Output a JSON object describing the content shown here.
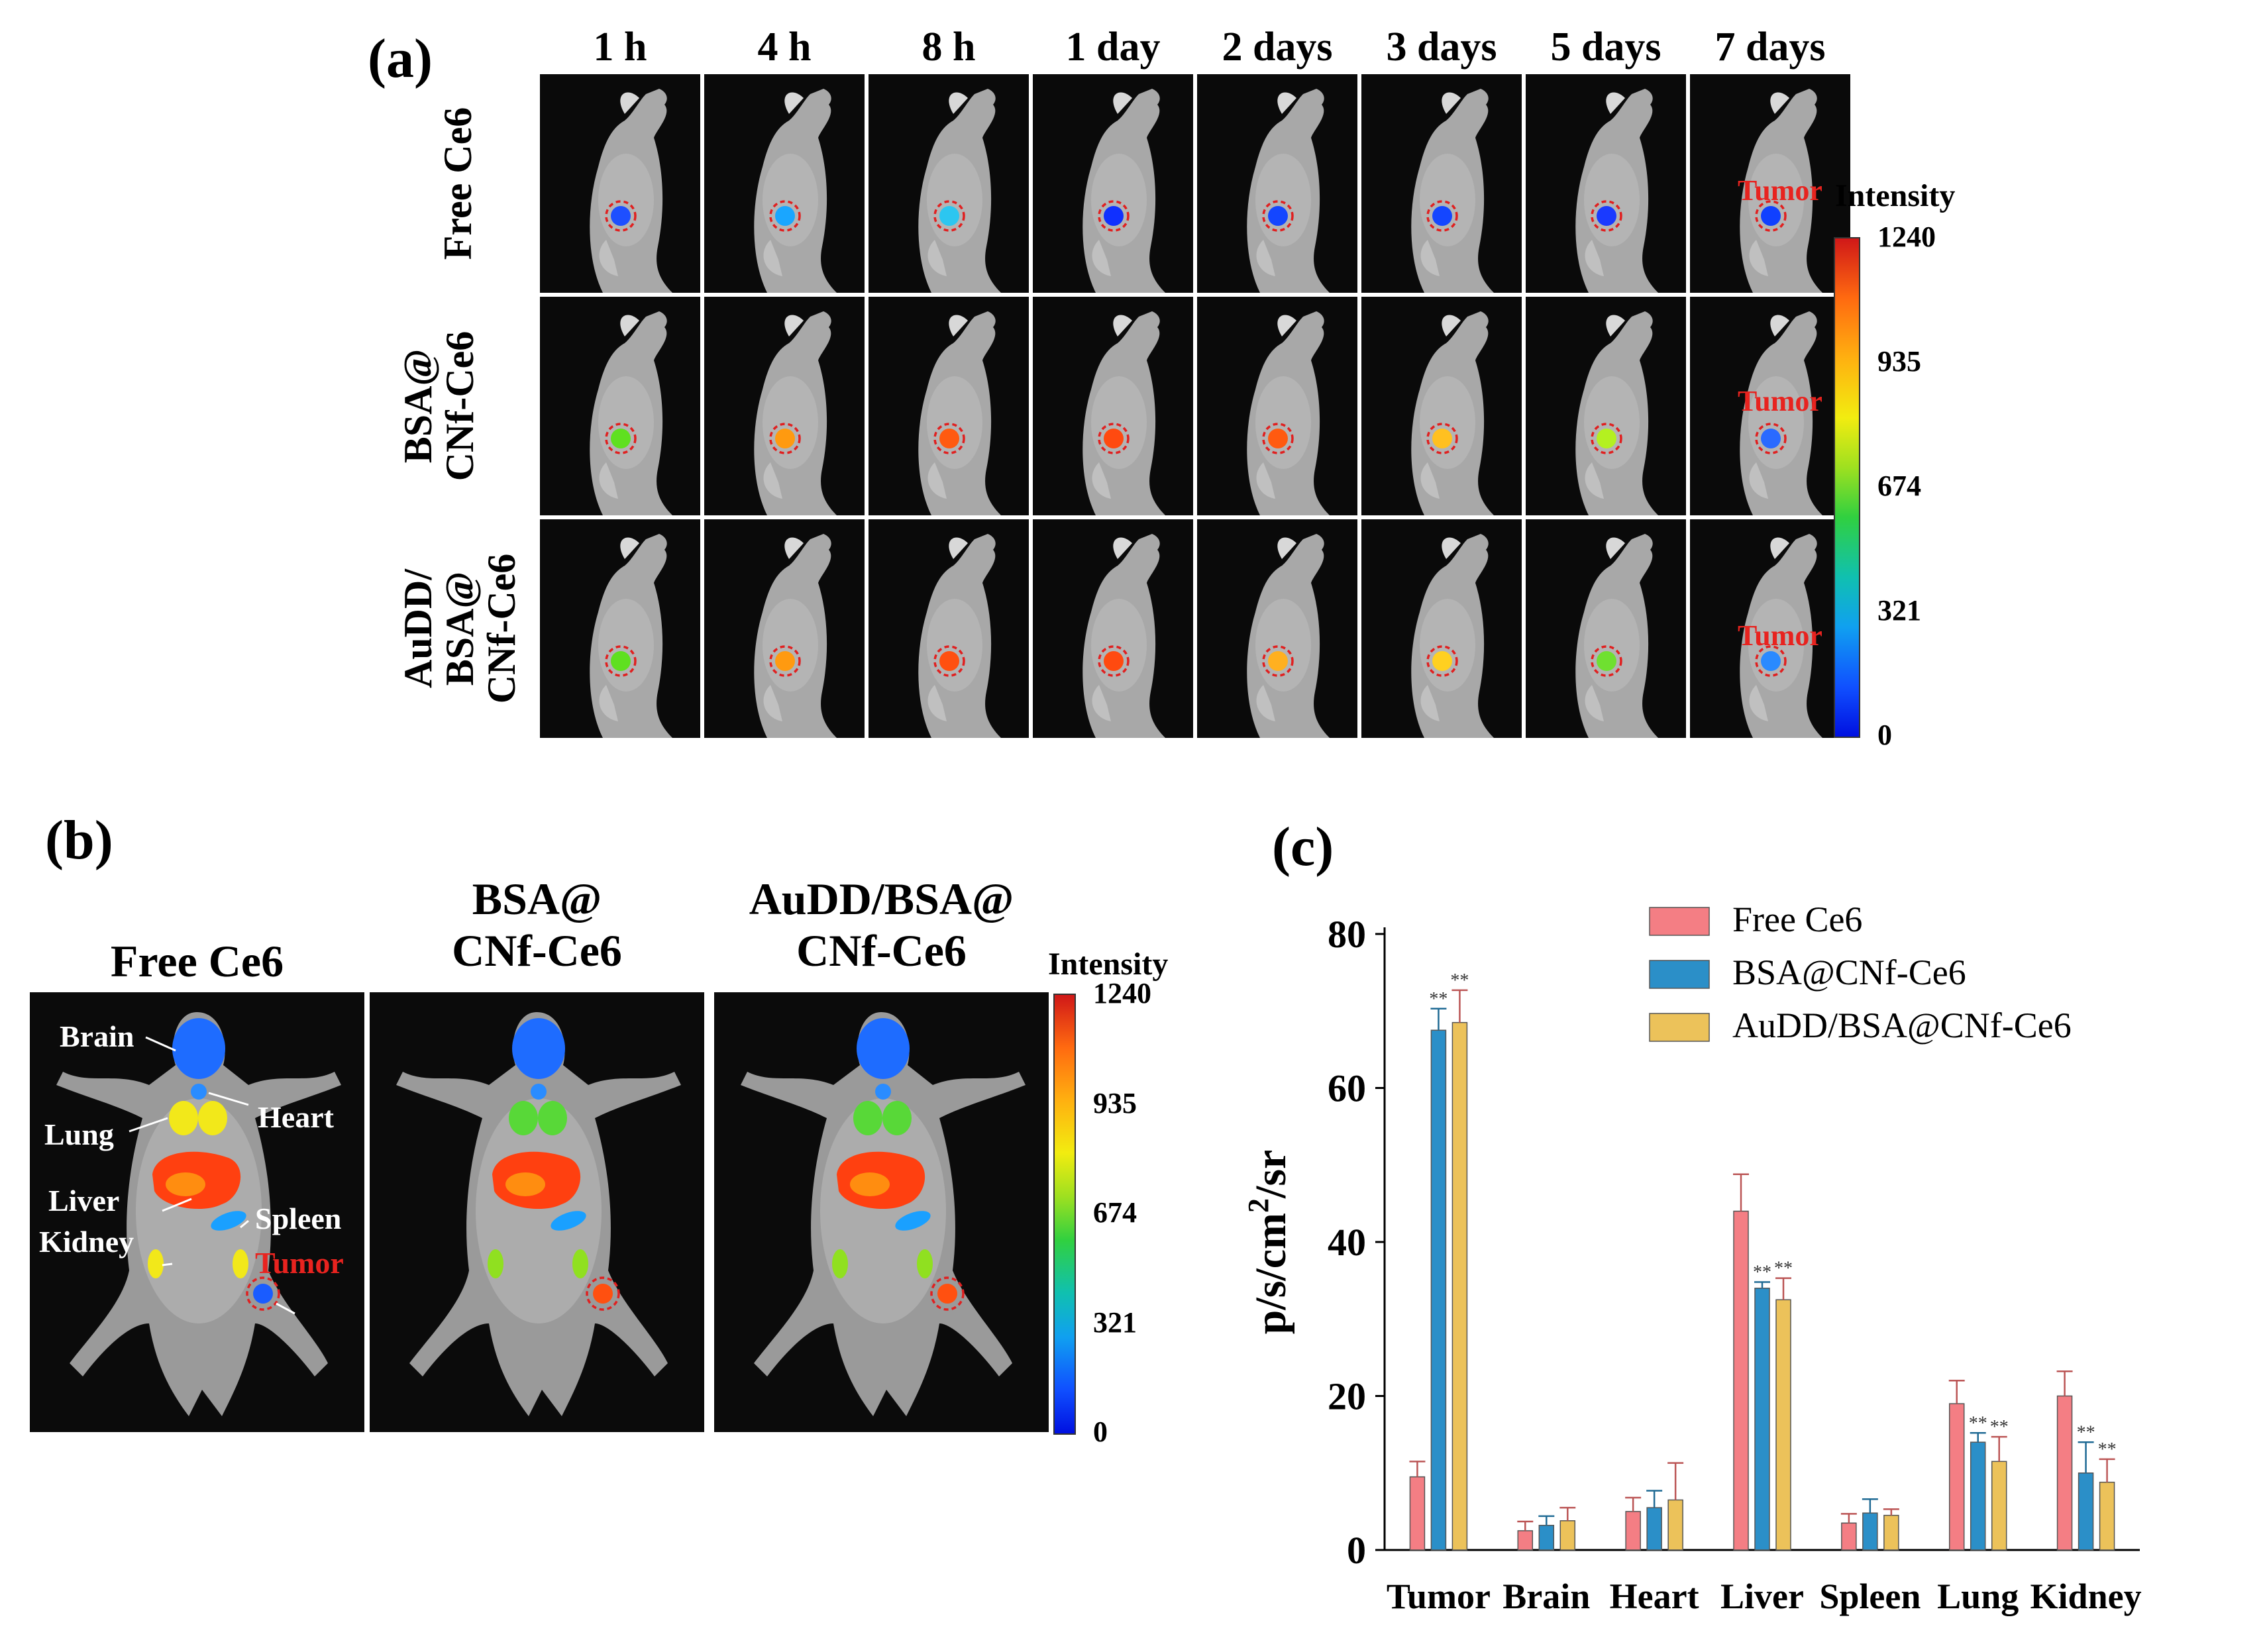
{
  "panel_a": {
    "label": "(a)",
    "time_points": [
      "1 h",
      "4 h",
      "8 h",
      "1 day",
      "2 days",
      "3 days",
      "5 days",
      "7 days"
    ],
    "rows": [
      {
        "label_lines": [
          "Free Ce6"
        ],
        "spot_colors": [
          "#1e4fff",
          "#1aa6ff",
          "#2cc6f0",
          "#1030ff",
          "#1446ff",
          "#1446ff",
          "#1a3aff",
          "#1040ff"
        ],
        "tumor_label": "Tumor"
      },
      {
        "label_lines": [
          "BSA@",
          "CNf-Ce6"
        ],
        "spot_colors": [
          "#5fe020",
          "#ff9a10",
          "#ff5a10",
          "#ff4a10",
          "#ff5a10",
          "#ffc020",
          "#b4f020",
          "#2a6aff"
        ],
        "tumor_label": "Tumor"
      },
      {
        "label_lines": [
          "AuDD/",
          "BSA@",
          "CNf-Ce6"
        ],
        "spot_colors": [
          "#5fe020",
          "#ff9a10",
          "#ff5010",
          "#ff4a10",
          "#ffb020",
          "#ffd020",
          "#6fe030",
          "#2a8aff"
        ],
        "tumor_label": "Tumor"
      }
    ],
    "colorbar": {
      "title": "Intensity",
      "ticks": [
        "1240",
        "935",
        "674",
        "321",
        "0"
      ]
    }
  },
  "panel_b": {
    "label": "(b)",
    "titles": [
      [
        "Free Ce6"
      ],
      [
        "BSA@",
        "CNf-Ce6"
      ],
      [
        "AuDD/BSA@",
        "CNf-Ce6"
      ]
    ],
    "organ_labels": {
      "brain": "Brain",
      "lung": "Lung",
      "heart": "Heart",
      "liver": "Liver",
      "spleen": "Spleen",
      "kidney": "Kidney",
      "tumor": "Tumor"
    },
    "colorbar": {
      "title": "Intensity",
      "ticks": [
        "1240",
        "935",
        "674",
        "321",
        "0"
      ]
    }
  },
  "chart_data": {
    "label": "(c)",
    "type": "bar",
    "title": "",
    "xlabel": "",
    "ylabel": "p/s/cm²/sr",
    "ylabel_base": "p/s/cm",
    "ylabel_sup": "2",
    "ylabel_tail": "/sr",
    "ylim": [
      0,
      80
    ],
    "yticks": [
      0,
      20,
      40,
      60,
      80
    ],
    "categories": [
      "Tumor",
      "Brain",
      "Heart",
      "Liver",
      "Spleen",
      "Lung",
      "Kidney"
    ],
    "series": [
      {
        "name": "Free Ce6",
        "color": "#f47e84",
        "values": [
          9.5,
          2.5,
          5.0,
          44,
          3.5,
          19,
          20
        ],
        "errors": [
          2,
          1.2,
          1.8,
          4.8,
          1.2,
          3,
          3.2
        ],
        "sig": [
          "",
          "",
          "",
          "",
          "",
          "",
          ""
        ]
      },
      {
        "name": "BSA@CNf-Ce6",
        "color": "#2b8fc8",
        "values": [
          67.5,
          3.2,
          5.5,
          34,
          4.8,
          14,
          10
        ],
        "errors": [
          2.8,
          1.2,
          2.2,
          0.8,
          1.8,
          1.2,
          4
        ],
        "sig": [
          "**",
          "",
          "",
          "**",
          "",
          "**",
          "**"
        ]
      },
      {
        "name": "AuDD/BSA@CNf-Ce6",
        "color": "#ecc25a",
        "values": [
          68.5,
          3.8,
          6.5,
          32.5,
          4.5,
          11.5,
          8.8
        ],
        "errors": [
          4.2,
          1.7,
          4.8,
          2.8,
          0.8,
          3.2,
          3
        ],
        "sig": [
          "**",
          "",
          "",
          "**",
          "",
          "**",
          "**"
        ]
      }
    ],
    "legend_position": "top-right"
  }
}
